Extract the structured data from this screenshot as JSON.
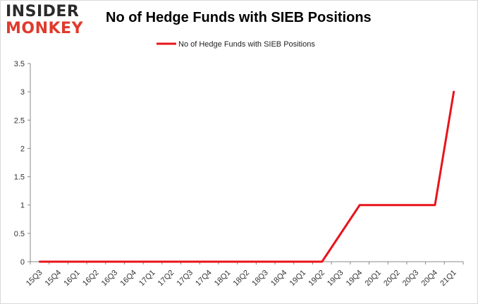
{
  "logo": {
    "line1": "INSIDER",
    "line2": "MONKEY"
  },
  "colors": {
    "series": "#e8141b",
    "axis": "#888888",
    "grid": "#d9d9d9",
    "logo_dark": "#2b2b2b",
    "logo_red": "#e03a2c"
  },
  "chart_data": {
    "type": "line",
    "title": "No of Hedge Funds with SIEB Positions",
    "xlabel": "",
    "ylabel": "",
    "ylim": [
      0,
      3.5
    ],
    "yticks": [
      "0",
      "0.5",
      "1",
      "1.5",
      "2",
      "2.5",
      "3",
      "3.5"
    ],
    "grid": false,
    "legend_position": "top-center",
    "categories": [
      "15Q3",
      "15Q4",
      "16Q1",
      "16Q2",
      "16Q3",
      "16Q4",
      "17Q1",
      "17Q2",
      "17Q3",
      "17Q4",
      "18Q1",
      "18Q2",
      "18Q3",
      "18Q4",
      "19Q1",
      "19Q2",
      "19Q3",
      "19Q4",
      "20Q1",
      "20Q2",
      "20Q3",
      "20Q4",
      "21Q1"
    ],
    "series": [
      {
        "name": "No of Hedge Funds with SIEB Positions",
        "color": "#e8141b",
        "values": [
          0,
          0,
          0,
          0,
          0,
          0,
          0,
          0,
          0,
          0,
          0,
          0,
          0,
          0,
          0,
          0,
          0.5,
          1,
          1,
          1,
          1,
          1,
          3
        ]
      }
    ]
  }
}
